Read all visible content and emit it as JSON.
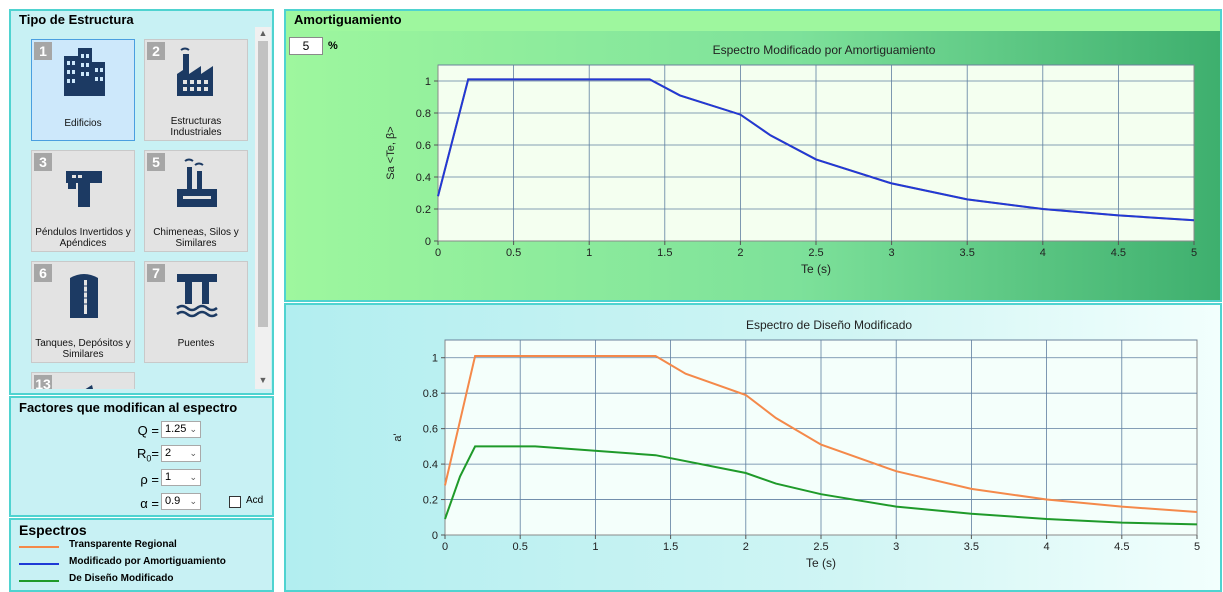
{
  "structure_panel": {
    "title": "Tipo de Estructura",
    "tiles": [
      {
        "num": "1",
        "label": "Edificios",
        "icon": "buildings-icon",
        "selected": true
      },
      {
        "num": "2",
        "label": "Estructuras Industriales",
        "icon": "factory-icon",
        "selected": false
      },
      {
        "num": "3",
        "label": "Péndulos Invertidos y Apéndices",
        "icon": "inverted-pendulum-icon",
        "selected": false
      },
      {
        "num": "5",
        "label": "Chimeneas, Silos y Similares",
        "icon": "chimney-icon",
        "selected": false
      },
      {
        "num": "6",
        "label": "Tanques, Depósitos y Similares",
        "icon": "tank-icon",
        "selected": false
      },
      {
        "num": "7",
        "label": "Puentes",
        "icon": "bridge-icon",
        "selected": false
      },
      {
        "num": "13",
        "label": "",
        "icon": "partial-tile-icon",
        "selected": false
      }
    ],
    "scroll_up": "▲",
    "scroll_down": "▼"
  },
  "factors_panel": {
    "title": "Factores que modifican al espectro",
    "q_label": "Q =",
    "q_value": "1.25",
    "r0_label": "R",
    "r0_sub": "0",
    "r0_eq": "=",
    "r0_value": "2",
    "rho_label": "ρ =",
    "rho_value": "1",
    "alpha_label": "α =",
    "alpha_value": "0.9",
    "acd_label": "Acd",
    "acd_checked": false
  },
  "spectra_panel": {
    "title": "Espectros",
    "items": [
      {
        "label": "Transparente Regional",
        "color": "#f4894a"
      },
      {
        "label": "Modificado por Amortiguamiento",
        "color": "#1f3ad6"
      },
      {
        "label": "De Diseño Modificado",
        "color": "#1f9a2a"
      }
    ]
  },
  "damping_panel": {
    "title": "Amortiguamiento",
    "value": "5",
    "unit": "%"
  },
  "chart_data": [
    {
      "type": "line",
      "title": "Espectro Modificado por Amortiguamiento",
      "xlabel": "Te (s)",
      "ylabel": "Sa <Te, β>",
      "xlim": [
        0,
        5
      ],
      "ylim": [
        0,
        1.1
      ],
      "xticks": [
        "0",
        "0.5",
        "1",
        "1.5",
        "2",
        "2.5",
        "3",
        "3.5",
        "4",
        "4.5",
        "5"
      ],
      "yticks": [
        "0",
        "0.2",
        "0.4",
        "0.6",
        "0.8",
        "1"
      ],
      "grid": true,
      "series": [
        {
          "color": "#f4894a",
          "x": [
            0,
            0.2,
            1.4,
            1.6,
            2.0,
            2.2,
            2.5,
            3.0,
            3.5,
            4.0,
            4.5,
            5.0
          ],
          "y": [
            0.28,
            1.01,
            1.01,
            0.91,
            0.79,
            0.66,
            0.51,
            0.36,
            0.26,
            0.2,
            0.16,
            0.13
          ]
        },
        {
          "color": "#1f3ad6",
          "x": [
            0,
            0.2,
            1.4,
            1.6,
            2.0,
            2.2,
            2.5,
            3.0,
            3.5,
            4.0,
            4.5,
            5.0
          ],
          "y": [
            0.28,
            1.01,
            1.01,
            0.91,
            0.79,
            0.66,
            0.51,
            0.36,
            0.26,
            0.2,
            0.16,
            0.13
          ]
        }
      ]
    },
    {
      "type": "line",
      "title": "Espectro de Diseño Modificado",
      "xlabel": "Te (s)",
      "ylabel": "a'",
      "xlim": [
        0,
        5
      ],
      "ylim": [
        0,
        1.1
      ],
      "xticks": [
        "0",
        "0.5",
        "1",
        "1.5",
        "2",
        "2.5",
        "3",
        "3.5",
        "4",
        "4.5",
        "5"
      ],
      "yticks": [
        "0",
        "0.2",
        "0.4",
        "0.6",
        "0.8",
        "1"
      ],
      "grid": true,
      "series": [
        {
          "color": "#f4894a",
          "x": [
            0,
            0.2,
            1.4,
            1.6,
            2.0,
            2.2,
            2.5,
            3.0,
            3.5,
            4.0,
            4.5,
            5.0
          ],
          "y": [
            0.28,
            1.01,
            1.01,
            0.91,
            0.79,
            0.66,
            0.51,
            0.36,
            0.26,
            0.2,
            0.16,
            0.13
          ]
        },
        {
          "color": "#1f9a2a",
          "x": [
            0,
            0.1,
            0.2,
            0.6,
            1.4,
            2.0,
            2.2,
            2.5,
            3.0,
            3.5,
            4.0,
            4.5,
            5.0
          ],
          "y": [
            0.09,
            0.33,
            0.5,
            0.5,
            0.45,
            0.35,
            0.29,
            0.23,
            0.16,
            0.12,
            0.09,
            0.07,
            0.06
          ]
        }
      ]
    }
  ]
}
